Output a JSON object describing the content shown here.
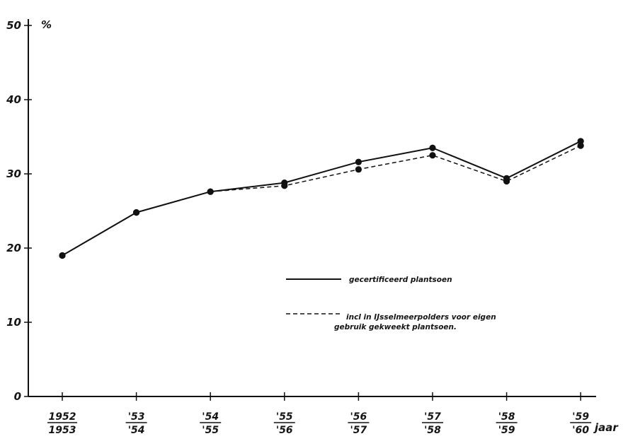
{
  "chart_data": {
    "type": "line",
    "title": "",
    "ylabel": "%",
    "xlabel": "jaar",
    "ylim": [
      0,
      50
    ],
    "yticks": [
      0,
      10,
      20,
      30,
      40,
      50
    ],
    "categories": [
      {
        "top": "1952",
        "bottom": "1953"
      },
      {
        "top": "'53",
        "bottom": "'54"
      },
      {
        "top": "'54",
        "bottom": "'55"
      },
      {
        "top": "'55",
        "bottom": "'56"
      },
      {
        "top": "'56",
        "bottom": "'57"
      },
      {
        "top": "'57",
        "bottom": "'58"
      },
      {
        "top": "'58",
        "bottom": "'59"
      },
      {
        "top": "'59",
        "bottom": "'60"
      }
    ],
    "series": [
      {
        "name": "gecertificeerd plantsoen",
        "style": "solid",
        "values": [
          19.0,
          24.8,
          27.6,
          28.8,
          31.6,
          33.5,
          29.4,
          34.4
        ]
      },
      {
        "name": "incl in IJsselmeerpolders voor eigen gebruik gekweekt plantsoen.",
        "legend_lines": [
          "incl in IJsselmeerpolders voor eigen",
          "gebruik gekweekt plantsoen."
        ],
        "style": "dashed",
        "values": [
          19.0,
          24.8,
          27.6,
          28.4,
          30.6,
          32.5,
          29.0,
          33.8
        ]
      }
    ],
    "grid": false,
    "legend_position": "center-right"
  }
}
